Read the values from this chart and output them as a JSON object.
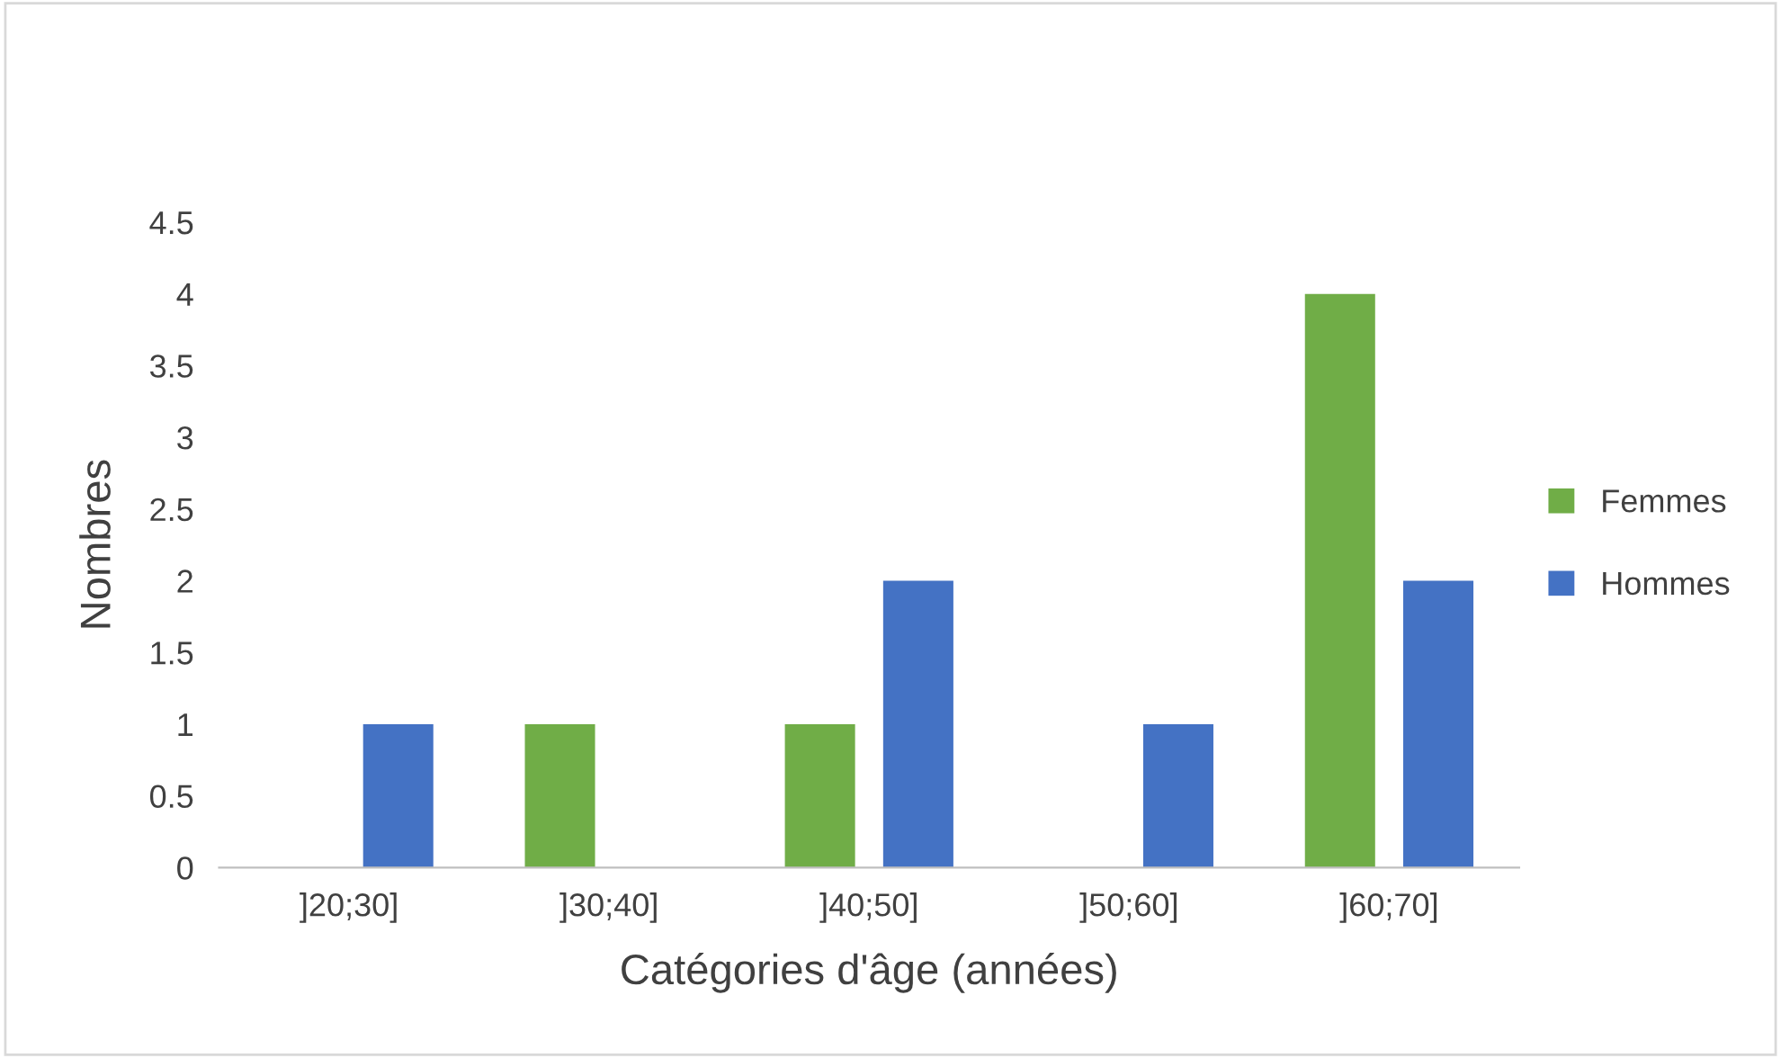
{
  "chart_data": {
    "type": "bar",
    "xlabel": "Catégories d'âge (années)",
    "ylabel": "Nombres",
    "categories": [
      "]20;30]",
      "]30;40]",
      "]40;50]",
      "]50;60]",
      "]60;70]"
    ],
    "series": [
      {
        "name": "Femmes",
        "color": "#70ad47",
        "values": [
          0,
          1,
          1,
          0,
          4
        ]
      },
      {
        "name": "Hommes",
        "color": "#4472c4",
        "values": [
          1,
          0,
          2,
          1,
          2
        ]
      }
    ],
    "ylim": [
      0,
      4.5
    ],
    "yticks": [
      0,
      0.5,
      1,
      1.5,
      2,
      2.5,
      3,
      3.5,
      4,
      4.5
    ],
    "grid": false,
    "legend": "right"
  }
}
